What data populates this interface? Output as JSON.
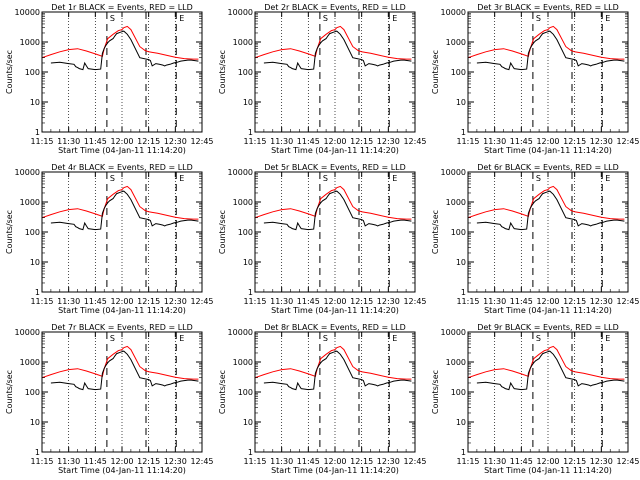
{
  "chart_data": {
    "type": "line",
    "x_ticks": [
      "11:15",
      "11:30",
      "11:45",
      "12:00",
      "12:15",
      "12:30",
      "12:45"
    ],
    "y_ticks": [
      "1",
      "10",
      "100",
      "1000",
      "10000"
    ],
    "ylabel": "Counts/sec",
    "xlabel": "Start Time (04-Jan-11 11:14:20)",
    "ylim": [
      1,
      10000
    ],
    "xlim_minutes": [
      0,
      90
    ],
    "log_y": true,
    "colors": {
      "events": "#000000",
      "lld": "#ff0000"
    },
    "markers": [
      {
        "label": "S",
        "minute": 36.5
      },
      {
        "label": "",
        "minute": 58.5
      },
      {
        "label": "E",
        "minute": 75.5
      }
    ],
    "dotted_minutes": [
      15,
      30,
      45,
      60,
      75
    ],
    "panels": [
      {
        "title": "Det 1r BLACK = Events, RED = LLD"
      },
      {
        "title": "Det 2r BLACK = Events, RED = LLD"
      },
      {
        "title": "Det 3r BLACK = Events, RED = LLD"
      },
      {
        "title": "Det 4r BLACK = Events, RED = LLD"
      },
      {
        "title": "Det 5r BLACK = Events, RED = LLD"
      },
      {
        "title": "Det 6r BLACK = Events, RED = LLD"
      },
      {
        "title": "Det 7r BLACK = Events, RED = LLD"
      },
      {
        "title": "Det 8r BLACK = Events, RED = LLD"
      },
      {
        "title": "Det 9r BLACK = Events, RED = LLD"
      }
    ],
    "series": [
      {
        "name": "LLD",
        "x": [
          0,
          5,
          10,
          15,
          20,
          25,
          30,
          34,
          35,
          36,
          37,
          40,
          43,
          45,
          46,
          48,
          50,
          55,
          58,
          60,
          62,
          65,
          70,
          75,
          80,
          85,
          88
        ],
        "y": [
          300,
          380,
          470,
          560,
          600,
          500,
          400,
          330,
          600,
          900,
          1300,
          1800,
          2400,
          2600,
          3000,
          3300,
          2600,
          700,
          520,
          470,
          450,
          420,
          360,
          310,
          280,
          270,
          270
        ]
      },
      {
        "name": "Events",
        "x": [
          5,
          10,
          15,
          18,
          19,
          20,
          21,
          22,
          23,
          24,
          25,
          26,
          30,
          33,
          34,
          35,
          36,
          37,
          38,
          40,
          41,
          42,
          44,
          45,
          46,
          48,
          50,
          55,
          60,
          61,
          62,
          64,
          66,
          68,
          69,
          70,
          72,
          74,
          76,
          78,
          80,
          82,
          84,
          86,
          88
        ],
        "y": [
          200,
          210,
          190,
          180,
          150,
          140,
          130,
          125,
          120,
          200,
          160,
          130,
          120,
          125,
          420,
          610,
          780,
          950,
          1100,
          1300,
          1600,
          1900,
          2100,
          2200,
          2300,
          1800,
          1200,
          300,
          260,
          240,
          160,
          190,
          180,
          170,
          160,
          170,
          180,
          200,
          210,
          230,
          240,
          250,
          250,
          240,
          230
        ]
      }
    ]
  }
}
